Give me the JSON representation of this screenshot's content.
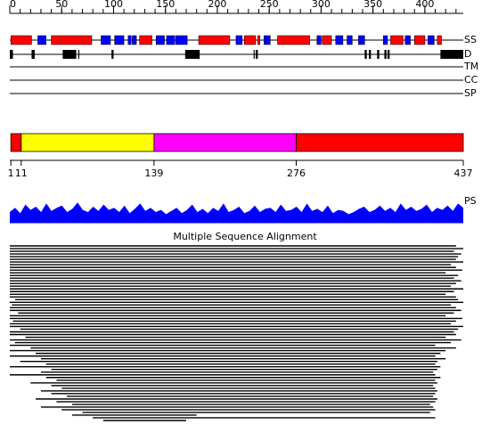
{
  "ruler": {
    "min": 0,
    "max": 437,
    "ticks": [
      0,
      50,
      100,
      150,
      200,
      250,
      300,
      350,
      400
    ],
    "minor_ticks": [
      0,
      10,
      20,
      30,
      40,
      50,
      60,
      70,
      80,
      90,
      100,
      110,
      120,
      130,
      140,
      150,
      160,
      170,
      180,
      190,
      200,
      210,
      220,
      230,
      240,
      250,
      260,
      270,
      280,
      290,
      300,
      310,
      320,
      330,
      340,
      350,
      360,
      370,
      380,
      390,
      400,
      410,
      420,
      430
    ]
  },
  "tracks": [
    {
      "label": "SS",
      "segments": [
        {
          "start": 1,
          "end": 21,
          "color": "#ff0000"
        },
        {
          "start": 27,
          "end": 35,
          "color": "#0000ff"
        },
        {
          "start": 40,
          "end": 79,
          "color": "#ff0000"
        },
        {
          "start": 88,
          "end": 97,
          "color": "#0000ff"
        },
        {
          "start": 101,
          "end": 110,
          "color": "#0000ff"
        },
        {
          "start": 114,
          "end": 117,
          "color": "#0000ff"
        },
        {
          "start": 118,
          "end": 122,
          "color": "#0000ff"
        },
        {
          "start": 125,
          "end": 137,
          "color": "#ff0000"
        },
        {
          "start": 141,
          "end": 149,
          "color": "#0000ff"
        },
        {
          "start": 151,
          "end": 159,
          "color": "#0000ff"
        },
        {
          "start": 160,
          "end": 171,
          "color": "#0000ff"
        },
        {
          "start": 182,
          "end": 212,
          "color": "#ff0000"
        },
        {
          "start": 218,
          "end": 224,
          "color": "#0000ff"
        },
        {
          "start": 226,
          "end": 237,
          "color": "#ff0000"
        },
        {
          "start": 239,
          "end": 241,
          "color": "#ff0000"
        },
        {
          "start": 245,
          "end": 251,
          "color": "#0000ff"
        },
        {
          "start": 258,
          "end": 289,
          "color": "#ff0000"
        },
        {
          "start": 296,
          "end": 300,
          "color": "#0000ff"
        },
        {
          "start": 301,
          "end": 310,
          "color": "#ff0000"
        },
        {
          "start": 314,
          "end": 321,
          "color": "#0000ff"
        },
        {
          "start": 325,
          "end": 330,
          "color": "#0000ff"
        },
        {
          "start": 336,
          "end": 342,
          "color": "#0000ff"
        },
        {
          "start": 360,
          "end": 364,
          "color": "#0000ff"
        },
        {
          "start": 367,
          "end": 379,
          "color": "#ff0000"
        },
        {
          "start": 381,
          "end": 386,
          "color": "#0000ff"
        },
        {
          "start": 390,
          "end": 400,
          "color": "#ff0000"
        },
        {
          "start": 403,
          "end": 409,
          "color": "#0000ff"
        },
        {
          "start": 412,
          "end": 416,
          "color": "#ff0000"
        }
      ]
    },
    {
      "label": "D",
      "segments": [
        {
          "start": 0,
          "end": 3,
          "color": "#000000"
        },
        {
          "start": 21,
          "end": 24,
          "color": "#000000"
        },
        {
          "start": 51,
          "end": 64,
          "color": "#000000"
        },
        {
          "start": 66,
          "end": 67,
          "color": "#000000"
        },
        {
          "start": 98,
          "end": 100,
          "color": "#000000"
        },
        {
          "start": 169,
          "end": 183,
          "color": "#000000"
        },
        {
          "start": 235,
          "end": 236,
          "color": "#000000"
        },
        {
          "start": 237,
          "end": 239,
          "color": "#000000"
        },
        {
          "start": 342,
          "end": 344,
          "color": "#000000"
        },
        {
          "start": 346,
          "end": 348,
          "color": "#000000"
        },
        {
          "start": 354,
          "end": 356,
          "color": "#000000"
        },
        {
          "start": 361,
          "end": 363,
          "color": "#000000"
        },
        {
          "start": 364,
          "end": 366,
          "color": "#000000"
        },
        {
          "start": 415,
          "end": 437,
          "color": "#000000"
        }
      ]
    },
    {
      "label": "TM",
      "segments": []
    },
    {
      "label": "CC",
      "segments": []
    },
    {
      "label": "SP",
      "segments": []
    }
  ],
  "domains": {
    "boundaries": [
      1,
      11,
      139,
      276,
      437
    ],
    "colors": [
      "#ff0000",
      "#ffff00",
      "#ff00ff",
      "#ff0000"
    ]
  },
  "ps": {
    "label": "PS",
    "color": "#0000ff",
    "values": [
      0.5,
      0.7,
      0.45,
      0.85,
      0.6,
      0.75,
      0.5,
      0.9,
      0.55,
      0.7,
      0.8,
      0.5,
      0.65,
      0.95,
      0.6,
      0.5,
      0.75,
      0.55,
      0.85,
      0.6,
      0.7,
      0.5,
      0.8,
      0.45,
      0.65,
      0.9,
      0.55,
      0.7,
      0.5,
      0.6,
      0.4,
      0.55,
      0.7,
      0.45,
      0.6,
      0.85,
      0.5,
      0.65,
      0.45,
      0.7,
      0.55,
      0.9,
      0.5,
      0.6,
      0.75,
      0.45,
      0.55,
      0.8,
      0.5,
      0.65,
      0.7,
      0.5,
      0.85,
      0.55,
      0.6,
      0.75,
      0.5,
      0.9,
      0.55,
      0.65,
      0.5,
      0.8,
      0.45,
      0.6,
      0.55,
      0.4,
      0.5,
      0.65,
      0.75,
      0.5,
      0.6,
      0.8,
      0.55,
      0.7,
      0.5,
      0.9,
      0.6,
      0.75,
      0.55,
      0.65,
      0.85,
      0.5,
      0.7,
      0.6,
      0.8,
      0.55,
      0.9,
      0.7
    ]
  },
  "msa": {
    "title": "Multiple Sequence Alignment",
    "rows": [
      [
        0,
        430
      ],
      [
        0,
        437
      ],
      [
        0,
        428
      ],
      [
        0,
        435
      ],
      [
        0,
        432
      ],
      [
        0,
        430
      ],
      [
        0,
        437
      ],
      [
        0,
        425
      ],
      [
        0,
        430
      ],
      [
        0,
        436
      ],
      [
        0,
        420
      ],
      [
        0,
        432
      ],
      [
        0,
        428
      ],
      [
        0,
        435
      ],
      [
        0,
        430
      ],
      [
        0,
        425
      ],
      [
        0,
        437
      ],
      [
        0,
        428
      ],
      [
        0,
        420
      ],
      [
        0,
        430
      ],
      [
        5,
        432
      ],
      [
        0,
        437
      ],
      [
        2,
        425
      ],
      [
        0,
        430
      ],
      [
        0,
        435
      ],
      [
        8,
        428
      ],
      [
        0,
        420
      ],
      [
        0,
        436
      ],
      [
        3,
        430
      ],
      [
        0,
        425
      ],
      [
        0,
        437
      ],
      [
        10,
        432
      ],
      [
        0,
        428
      ],
      [
        0,
        430
      ],
      [
        15,
        420
      ],
      [
        0,
        435
      ],
      [
        5,
        425
      ],
      [
        0,
        410
      ],
      [
        20,
        430
      ],
      [
        0,
        420
      ],
      [
        25,
        415
      ],
      [
        0,
        410
      ],
      [
        30,
        420
      ],
      [
        10,
        412
      ],
      [
        35,
        410
      ],
      [
        0,
        415
      ],
      [
        40,
        412
      ],
      [
        30,
        408
      ],
      [
        0,
        410
      ],
      [
        35,
        415
      ],
      [
        45,
        410
      ],
      [
        20,
        412
      ],
      [
        40,
        408
      ],
      [
        50,
        410
      ],
      [
        30,
        412
      ],
      [
        40,
        410
      ],
      [
        55,
        408
      ],
      [
        25,
        412
      ],
      [
        45,
        410
      ],
      [
        60,
        405
      ],
      [
        30,
        408
      ],
      [
        50,
        410
      ],
      [
        70,
        405
      ],
      [
        60,
        180
      ],
      [
        80,
        410
      ],
      [
        90,
        170
      ]
    ]
  }
}
